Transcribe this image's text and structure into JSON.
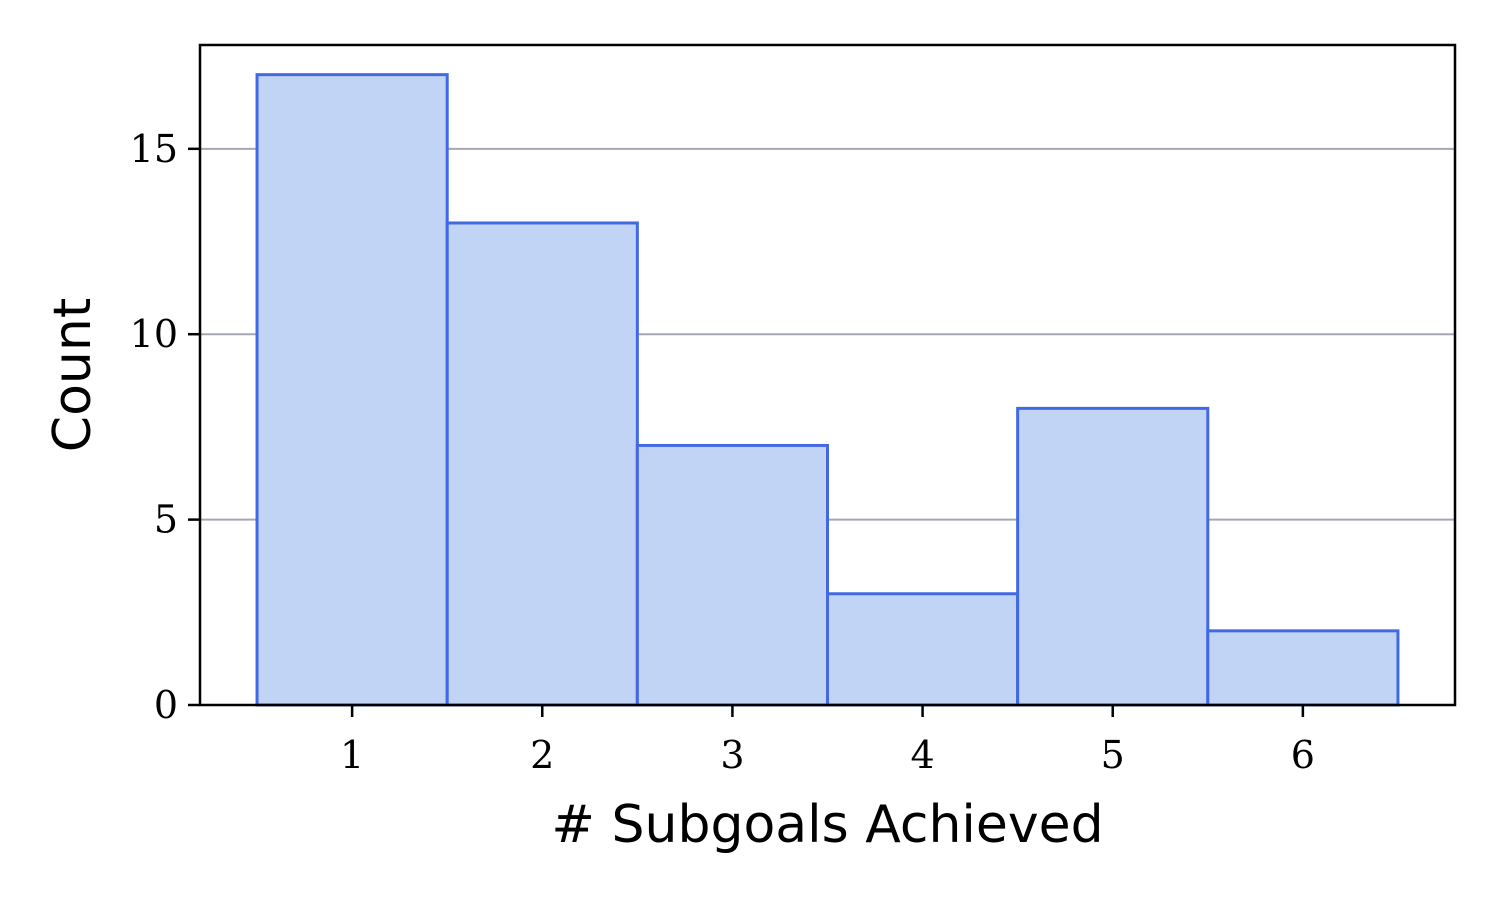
{
  "chart_data": {
    "type": "bar",
    "title": "",
    "xlabel": "# Subgoals Achieved",
    "ylabel": "Count",
    "categories": [
      "1",
      "2",
      "3",
      "4",
      "5",
      "6"
    ],
    "x": [
      1,
      2,
      3,
      4,
      5,
      6
    ],
    "values": [
      17,
      13,
      7,
      3,
      8,
      2
    ],
    "xlim": [
      0.2,
      6.8
    ],
    "ylim": [
      0,
      17.8
    ],
    "yticks": [
      0,
      5,
      10,
      15
    ],
    "grid": "y",
    "legend": "none",
    "colors": {
      "bar_fill": "#c2d4f5",
      "bar_edge": "#4169e1",
      "grid": "#a3a8b3"
    }
  }
}
